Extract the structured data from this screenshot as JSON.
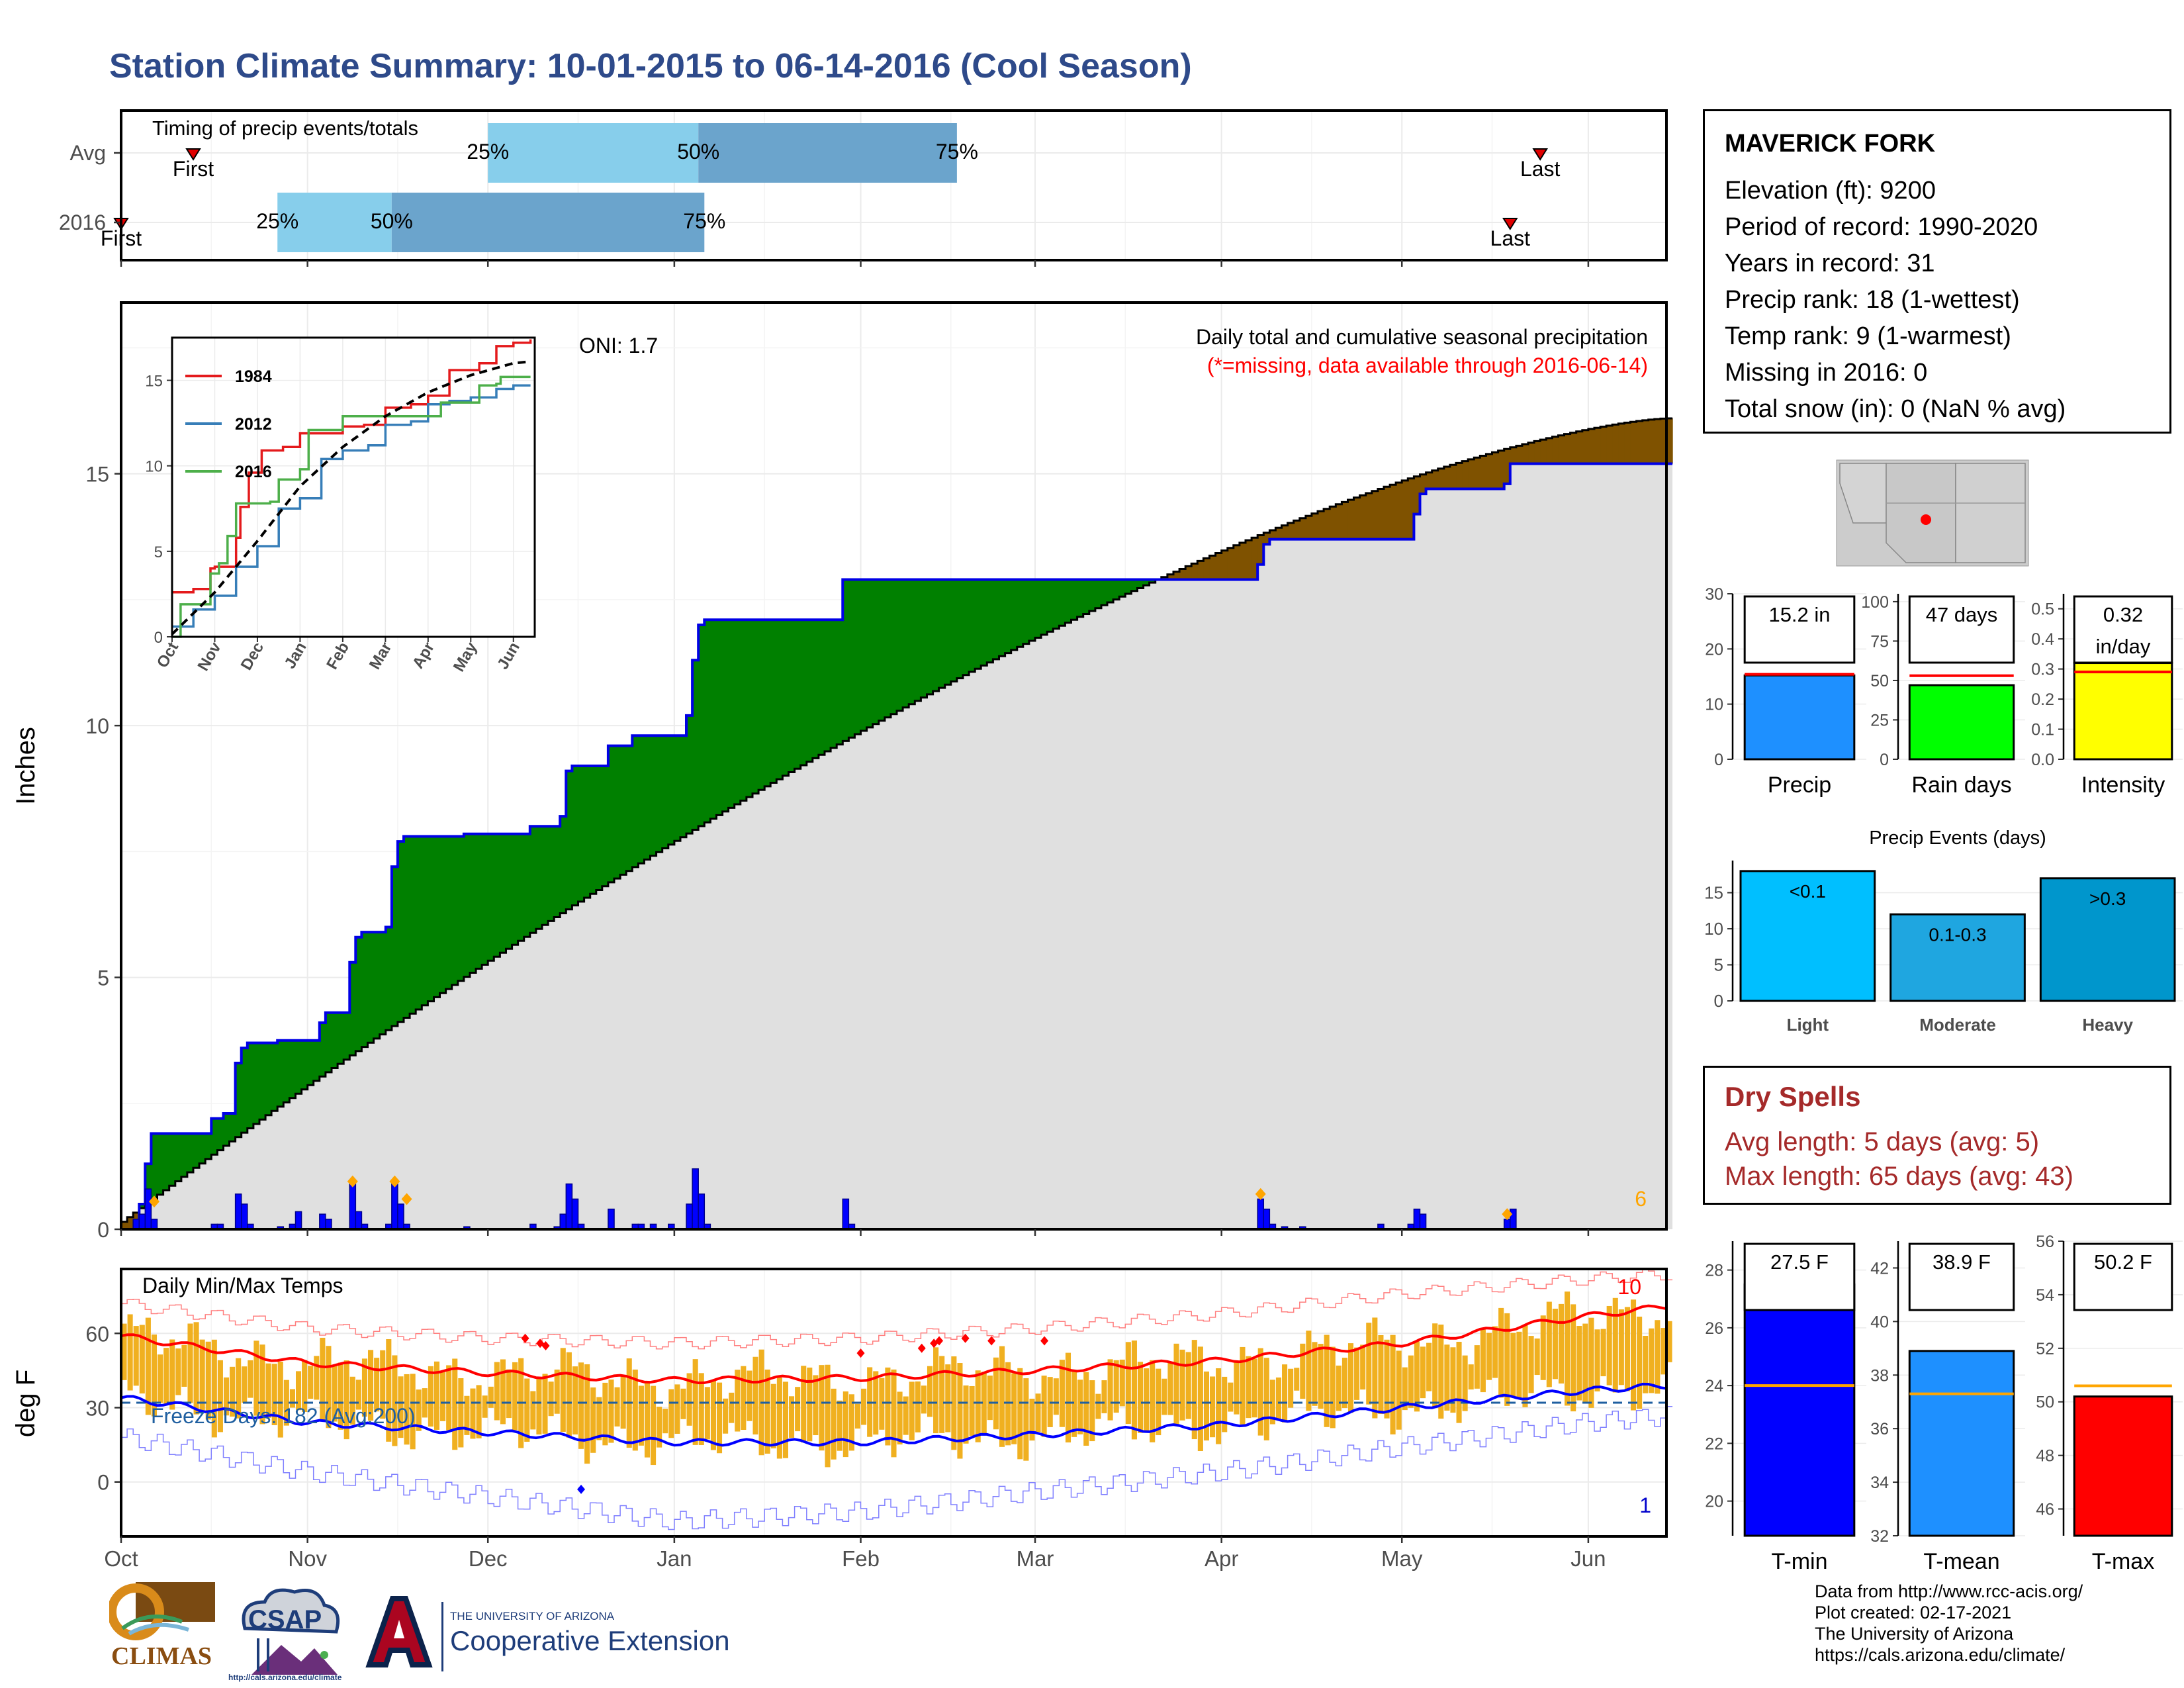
{
  "header": {
    "title": "Station Climate Summary: 10-01-2015 to 06-14-2016 (Cool Season)"
  },
  "station": {
    "name": "MAVERICK FORK",
    "elevation": "Elevation (ft): 9200",
    "period": "Period of record: 1990-2020",
    "years": "Years in record: 31",
    "precip_rank": "Precip rank: 18 (1-wettest)",
    "temp_rank": "Temp rank: 9 (1-warmest)",
    "missing": "Missing in 2016: 0",
    "snow": "Total snow (in): 0 (NaN % avg)"
  },
  "dry_spells": {
    "title": "Dry Spells",
    "avg": "Avg length: 5 days (avg: 5)",
    "max": "Max length: 65 days (avg: 43)"
  },
  "credits": {
    "line1": "Data from http://www.rcc-acis.org/",
    "line2": "Plot created: 02-17-2021",
    "line3": "The University of Arizona",
    "line4": "https://cals.arizona.edu/climate/"
  },
  "logos": {
    "climas": "CLIMAS",
    "csap": "CSAP",
    "csap_url": "http://cals.arizona.edu/climate",
    "ua_small": "THE UNIVERSITY OF ARIZONA",
    "ua_big": "Cooperative Extension"
  },
  "colors": {
    "title": "#2e4a8a",
    "green_fill": "#008000",
    "brown_fill": "#7f5200",
    "grey_fill": "#e0e0e0",
    "blue_line": "#0000e6",
    "bar_blue": "#0000ff",
    "tmin_bar": "#0000ff",
    "tmean_bar": "#1e90ff",
    "tmax_bar": "#ff0000",
    "precip_bar": "#1e90ff",
    "raindays_bar": "#00ff00",
    "intensity_bar": "#ffff00",
    "temp_bar": "#f0b020"
  },
  "chart_data": [
    {
      "id": "timing",
      "type": "bar",
      "title": "Timing of precip events/totals",
      "x_axis": [
        "Oct",
        "Nov",
        "Dec",
        "Jan",
        "Feb",
        "Mar",
        "Apr",
        "May",
        "Jun"
      ],
      "rows": [
        {
          "label": "Avg",
          "first": "10-13",
          "p25": "12-01",
          "p50": "01-05",
          "p75": "02-17",
          "last": "05-24"
        },
        {
          "label": "2016",
          "first": "10-01",
          "p25": "10-27",
          "p50": "11-15",
          "p75": "01-06",
          "last": "05-19"
        }
      ],
      "text": {
        "first": "First",
        "last": "Last",
        "p25": "25%",
        "p50": "50%",
        "p75": "75%"
      }
    },
    {
      "id": "cumulative-precip",
      "type": "area",
      "title": "Daily total and cumulative seasonal precipitation",
      "subtitle": "(*=missing, data available through 2016-06-14)",
      "ylabel": "Inches",
      "ylim": [
        0,
        18.4
      ],
      "yticks": [
        0,
        5,
        10,
        15
      ],
      "oni": "ONI: 1.7",
      "corner_count": "6",
      "season_2016": [
        [
          "10-01",
          0.0
        ],
        [
          "10-04",
          0.5
        ],
        [
          "10-05",
          1.3
        ],
        [
          "10-06",
          1.9
        ],
        [
          "10-15",
          1.9
        ],
        [
          "10-16",
          2.2
        ],
        [
          "10-18",
          2.3
        ],
        [
          "10-20",
          3.3
        ],
        [
          "10-21",
          3.6
        ],
        [
          "10-22",
          3.7
        ],
        [
          "10-27",
          3.75
        ],
        [
          "11-03",
          4.1
        ],
        [
          "11-04",
          4.3
        ],
        [
          "11-08",
          5.3
        ],
        [
          "11-09",
          5.8
        ],
        [
          "11-10",
          5.9
        ],
        [
          "11-14",
          6.0
        ],
        [
          "11-15",
          7.2
        ],
        [
          "11-16",
          7.7
        ],
        [
          "11-17",
          7.8
        ],
        [
          "11-27",
          7.85
        ],
        [
          "12-08",
          8.0
        ],
        [
          "12-13",
          8.2
        ],
        [
          "12-14",
          9.1
        ],
        [
          "12-15",
          9.2
        ],
        [
          "12-19",
          9.2
        ],
        [
          "12-21",
          9.6
        ],
        [
          "12-25",
          9.8
        ],
        [
          "01-03",
          10.2
        ],
        [
          "01-04",
          11.3
        ],
        [
          "01-05",
          12.0
        ],
        [
          "01-06",
          12.1
        ],
        [
          "01-28",
          12.1
        ],
        [
          "01-29",
          12.9
        ],
        [
          "03-09",
          12.9
        ],
        [
          "04-07",
          13.2
        ],
        [
          "04-08",
          13.6
        ],
        [
          "04-09",
          13.7
        ],
        [
          "04-30",
          13.7
        ],
        [
          "05-03",
          14.2
        ],
        [
          "05-04",
          14.6
        ],
        [
          "05-05",
          14.7
        ],
        [
          "05-18",
          14.8
        ],
        [
          "05-19",
          15.2
        ],
        [
          "06-14",
          15.2
        ]
      ],
      "average_start": 0.15,
      "average_end": 16.1,
      "daily_precip": [
        [
          "10-03",
          0.2
        ],
        [
          "10-04",
          0.3
        ],
        [
          "10-05",
          0.8
        ],
        [
          "10-06",
          0.2
        ],
        [
          "10-16",
          0.1
        ],
        [
          "10-17",
          0.1
        ],
        [
          "10-20",
          0.7
        ],
        [
          "10-21",
          0.5
        ],
        [
          "10-22",
          0.1
        ],
        [
          "10-27",
          0.05
        ],
        [
          "10-29",
          0.1
        ],
        [
          "10-30",
          0.35
        ],
        [
          "11-03",
          0.3
        ],
        [
          "11-04",
          0.2
        ],
        [
          "11-08",
          0.9
        ],
        [
          "11-09",
          0.35
        ],
        [
          "11-10",
          0.1
        ],
        [
          "11-14",
          0.1
        ],
        [
          "11-15",
          0.9
        ],
        [
          "11-16",
          0.5
        ],
        [
          "11-17",
          0.1
        ],
        [
          "11-27",
          0.05
        ],
        [
          "12-08",
          0.1
        ],
        [
          "12-12",
          0.05
        ],
        [
          "12-13",
          0.3
        ],
        [
          "12-14",
          0.9
        ],
        [
          "12-15",
          0.6
        ],
        [
          "12-16",
          0.1
        ],
        [
          "12-21",
          0.4
        ],
        [
          "12-25",
          0.1
        ],
        [
          "12-26",
          0.1
        ],
        [
          "12-28",
          0.1
        ],
        [
          "12-31",
          0.1
        ],
        [
          "01-03",
          0.5
        ],
        [
          "01-04",
          1.2
        ],
        [
          "01-05",
          0.7
        ],
        [
          "01-06",
          0.1
        ],
        [
          "01-29",
          0.6
        ],
        [
          "01-30",
          0.1
        ],
        [
          "04-07",
          0.6
        ],
        [
          "04-08",
          0.4
        ],
        [
          "04-09",
          0.1
        ],
        [
          "04-11",
          0.05
        ],
        [
          "04-14",
          0.05
        ],
        [
          "04-27",
          0.1
        ],
        [
          "05-02",
          0.1
        ],
        [
          "05-03",
          0.4
        ],
        [
          "05-04",
          0.3
        ],
        [
          "05-18",
          0.2
        ],
        [
          "05-19",
          0.4
        ]
      ],
      "event_markers": [
        [
          "10-06",
          0.55
        ],
        [
          "11-08",
          0.95
        ],
        [
          "11-15",
          0.95
        ],
        [
          "11-17",
          0.6
        ],
        [
          "04-07",
          0.7
        ],
        [
          "05-18",
          0.3
        ]
      ]
    },
    {
      "id": "inset-seasons",
      "type": "line",
      "x_axis": [
        "Oct",
        "Nov",
        "Dec",
        "Jan",
        "Feb",
        "Mar",
        "Apr",
        "May",
        "Jun"
      ],
      "ylim": [
        0,
        17.5
      ],
      "yticks": [
        0,
        5,
        10,
        15
      ],
      "series": [
        {
          "name": "1984",
          "color": "#e41a1c",
          "points": [
            [
              0,
              2.6
            ],
            [
              0.5,
              2.8
            ],
            [
              0.9,
              4.0
            ],
            [
              1.0,
              4.1
            ],
            [
              1.5,
              5.8
            ],
            [
              1.6,
              7.6
            ],
            [
              1.8,
              9.6
            ],
            [
              2.1,
              10.9
            ],
            [
              2.6,
              11.1
            ],
            [
              3.0,
              11.9
            ],
            [
              3.6,
              11.9
            ],
            [
              4.0,
              12.3
            ],
            [
              4.5,
              12.4
            ],
            [
              5.0,
              13.4
            ],
            [
              5.6,
              13.6
            ],
            [
              6.0,
              14.1
            ],
            [
              6.5,
              15.6
            ],
            [
              7.2,
              16.0
            ],
            [
              7.6,
              17.0
            ],
            [
              8.0,
              17.2
            ],
            [
              8.4,
              17.4
            ]
          ]
        },
        {
          "name": "2012",
          "color": "#377eb8",
          "points": [
            [
              0,
              0.6
            ],
            [
              0.5,
              1.6
            ],
            [
              1.0,
              2.4
            ],
            [
              1.5,
              4.1
            ],
            [
              2.0,
              5.3
            ],
            [
              2.5,
              7.5
            ],
            [
              3.0,
              8.1
            ],
            [
              3.5,
              10.4
            ],
            [
              4.0,
              10.9
            ],
            [
              4.6,
              11.2
            ],
            [
              5.0,
              12.4
            ],
            [
              5.6,
              12.6
            ],
            [
              6.0,
              13.6
            ],
            [
              6.5,
              13.8
            ],
            [
              7.0,
              14.0
            ],
            [
              7.6,
              14.5
            ],
            [
              8.0,
              14.7
            ],
            [
              8.4,
              14.7
            ]
          ]
        },
        {
          "name": "2016",
          "color": "#4daf4a",
          "points": [
            [
              0,
              0
            ],
            [
              0.2,
              1.9
            ],
            [
              0.9,
              3.7
            ],
            [
              1.1,
              4.3
            ],
            [
              1.3,
              5.9
            ],
            [
              1.5,
              7.8
            ],
            [
              2.3,
              7.9
            ],
            [
              2.5,
              9.2
            ],
            [
              3.0,
              9.8
            ],
            [
              3.2,
              12.1
            ],
            [
              4.0,
              12.9
            ],
            [
              6.0,
              12.9
            ],
            [
              6.3,
              13.7
            ],
            [
              7.0,
              13.7
            ],
            [
              7.2,
              14.7
            ],
            [
              7.6,
              14.8
            ],
            [
              7.7,
              15.2
            ],
            [
              8.4,
              15.2
            ]
          ]
        },
        {
          "name": "",
          "color": "#000000",
          "dashed": true,
          "points": [
            [
              0,
              0.15
            ],
            [
              1.0,
              2.6
            ],
            [
              2.0,
              5.6
            ],
            [
              3.0,
              8.8
            ],
            [
              4.0,
              11.1
            ],
            [
              5.0,
              12.9
            ],
            [
              6.0,
              14.3
            ],
            [
              7.0,
              15.3
            ],
            [
              8.0,
              16.0
            ],
            [
              8.4,
              16.1
            ]
          ]
        }
      ]
    },
    {
      "id": "temps",
      "type": "line",
      "title": "Daily Min/Max Temps",
      "ylabel": "deg F",
      "ylim": [
        -22,
        86
      ],
      "yticks": [
        0,
        30,
        60
      ],
      "freeze_text": "Freeze Days: 182 (Avg:200)",
      "freeze_line": 32,
      "label_high": "10",
      "label_low": "1",
      "x_axis": [
        "Oct",
        "Nov",
        "Dec",
        "Jan",
        "Feb",
        "Mar",
        "Apr",
        "May",
        "Jun"
      ],
      "avg_max": [
        [
          0,
          59
        ],
        [
          1,
          48
        ],
        [
          2,
          44
        ],
        [
          3,
          41
        ],
        [
          4,
          42
        ],
        [
          5,
          45
        ],
        [
          6,
          49
        ],
        [
          7,
          56
        ],
        [
          8,
          67
        ],
        [
          8.45,
          71
        ]
      ],
      "avg_min": [
        [
          0,
          34
        ],
        [
          1,
          24
        ],
        [
          2,
          20
        ],
        [
          3,
          16
        ],
        [
          4,
          16
        ],
        [
          5,
          19
        ],
        [
          6,
          23
        ],
        [
          7,
          30
        ],
        [
          8,
          37
        ],
        [
          8.45,
          39
        ]
      ],
      "record_high": [
        [
          0,
          72
        ],
        [
          1,
          62
        ],
        [
          2,
          58
        ],
        [
          3,
          56
        ],
        [
          4,
          58
        ],
        [
          5,
          62
        ],
        [
          6,
          68
        ],
        [
          7,
          76
        ],
        [
          8,
          82
        ],
        [
          8.45,
          84
        ]
      ],
      "record_low": [
        [
          0,
          18
        ],
        [
          1,
          4
        ],
        [
          2,
          -6
        ],
        [
          3,
          -16
        ],
        [
          4,
          -12
        ],
        [
          5,
          -4
        ],
        [
          6,
          4
        ],
        [
          7,
          14
        ],
        [
          8,
          24
        ],
        [
          8.45,
          27
        ]
      ],
      "record_high_markers": [
        [
          2.2,
          58
        ],
        [
          2.28,
          56
        ],
        [
          2.31,
          55
        ],
        [
          4.0,
          52
        ],
        [
          4.35,
          54
        ],
        [
          4.42,
          56
        ],
        [
          4.6,
          58
        ],
        [
          4.75,
          57
        ],
        [
          5.05,
          57
        ],
        [
          4.45,
          57
        ]
      ],
      "record_low_markers": [
        [
          2.5,
          -3
        ]
      ]
    },
    {
      "id": "totals",
      "type": "bar",
      "panels": [
        {
          "name": "Precip",
          "label": "15.2 in",
          "value": 15.2,
          "avg": 15.4,
          "ylim": [
            0,
            30
          ],
          "yticks": [
            0,
            10,
            20,
            30
          ]
        },
        {
          "name": "Rain days",
          "label": "47 days",
          "value": 47,
          "avg": 53,
          "ylim": [
            0,
            105
          ],
          "yticks": [
            0,
            25,
            50,
            75,
            100
          ]
        },
        {
          "name": "Intensity",
          "label": "0.32",
          "label2": "in/day",
          "value": 0.32,
          "avg": 0.29,
          "ylim": [
            0,
            0.55
          ],
          "yticks": [
            0.0,
            0.1,
            0.2,
            0.3,
            0.4,
            0.5
          ]
        }
      ]
    },
    {
      "id": "precip-events",
      "type": "bar",
      "title": "Precip Events (days)",
      "categories": [
        "Light",
        "Moderate",
        "Heavy"
      ],
      "labels": [
        "<0.1",
        "0.1-0.3",
        ">0.3"
      ],
      "values": [
        18,
        12,
        17
      ],
      "ylim": [
        0,
        19
      ],
      "yticks": [
        0,
        5,
        10,
        15
      ]
    },
    {
      "id": "temp-means",
      "type": "bar",
      "panels": [
        {
          "name": "T-min",
          "label": "27.5 F",
          "value": 27.5,
          "avg": 24.0,
          "ylim": [
            18.8,
            29
          ],
          "yticks": [
            20,
            22,
            24,
            26,
            28
          ]
        },
        {
          "name": "T-mean",
          "label": "38.9 F",
          "value": 38.9,
          "avg": 37.3,
          "ylim": [
            32,
            43
          ],
          "yticks": [
            32,
            34,
            36,
            38,
            40,
            42
          ]
        },
        {
          "name": "T-max",
          "label": "50.2 F",
          "value": 50.2,
          "avg": 50.6,
          "ylim": [
            45,
            56
          ],
          "yticks": [
            46,
            48,
            50,
            52,
            54,
            56
          ]
        }
      ]
    }
  ]
}
